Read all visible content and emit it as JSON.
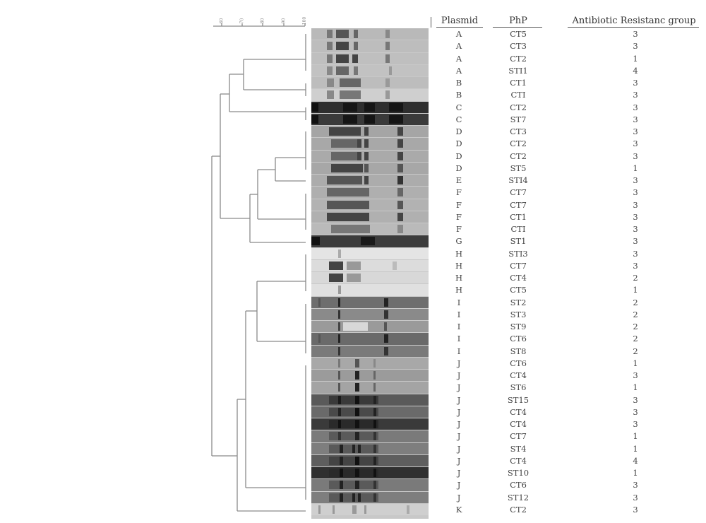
{
  "figure": {
    "scale": {
      "ticks": [
        "60",
        "70",
        "80",
        "90",
        "100"
      ]
    },
    "columns": {
      "plasmid": "Plasmid",
      "php": "PhP",
      "resistance": "Antibiotic Resistanc group"
    },
    "rows": [
      {
        "plasmid": "A",
        "php": "CT5",
        "group": "3"
      },
      {
        "plasmid": "A",
        "php": "CT3",
        "group": "3"
      },
      {
        "plasmid": "A",
        "php": "CT2",
        "group": "1"
      },
      {
        "plasmid": "A",
        "php": "STI1",
        "group": "4"
      },
      {
        "plasmid": "B",
        "php": "CT1",
        "group": "3"
      },
      {
        "plasmid": "B",
        "php": "CTI",
        "group": "3"
      },
      {
        "plasmid": "C",
        "php": "CT2",
        "group": "3"
      },
      {
        "plasmid": "C",
        "php": "ST7",
        "group": "3"
      },
      {
        "plasmid": "D",
        "php": "CT3",
        "group": "3"
      },
      {
        "plasmid": "D",
        "php": "CT2",
        "group": "3"
      },
      {
        "plasmid": "D",
        "php": "CT2",
        "group": "3"
      },
      {
        "plasmid": "D",
        "php": "ST5",
        "group": "1"
      },
      {
        "plasmid": "E",
        "php": "STI4",
        "group": "3"
      },
      {
        "plasmid": "F",
        "php": "CT7",
        "group": "3"
      },
      {
        "plasmid": "F",
        "php": "CT7",
        "group": "3"
      },
      {
        "plasmid": "F",
        "php": "CT1",
        "group": "3"
      },
      {
        "plasmid": "F",
        "php": "CTI",
        "group": "3"
      },
      {
        "plasmid": "G",
        "php": "ST1",
        "group": "3"
      },
      {
        "plasmid": "H",
        "php": "STI3",
        "group": "3"
      },
      {
        "plasmid": "H",
        "php": "CT7",
        "group": "3"
      },
      {
        "plasmid": "H",
        "php": "CT4",
        "group": "2"
      },
      {
        "plasmid": "H",
        "php": "CT5",
        "group": "1"
      },
      {
        "plasmid": "I",
        "php": "ST2",
        "group": "2"
      },
      {
        "plasmid": "I",
        "php": "ST3",
        "group": "2"
      },
      {
        "plasmid": "I",
        "php": "ST9",
        "group": "2"
      },
      {
        "plasmid": "I",
        "php": "CT6",
        "group": "2"
      },
      {
        "plasmid": "I",
        "php": "ST8",
        "group": "2"
      },
      {
        "plasmid": "J",
        "php": "CT6",
        "group": "1"
      },
      {
        "plasmid": "J",
        "php": "CT4",
        "group": "3"
      },
      {
        "plasmid": "J",
        "php": "ST6",
        "group": "1"
      },
      {
        "plasmid": "J",
        "php": "ST15",
        "group": "3"
      },
      {
        "plasmid": "J",
        "php": "CT4",
        "group": "3"
      },
      {
        "plasmid": "J",
        "php": "CT4",
        "group": "3"
      },
      {
        "plasmid": "J",
        "php": "CT7",
        "group": "1"
      },
      {
        "plasmid": "J",
        "php": "ST4",
        "group": "1"
      },
      {
        "plasmid": "J",
        "php": "CT4",
        "group": "4"
      },
      {
        "plasmid": "J",
        "php": "ST10",
        "group": "1"
      },
      {
        "plasmid": "J",
        "php": "CT6",
        "group": "3"
      },
      {
        "plasmid": "J",
        "php": "ST12",
        "group": "3"
      },
      {
        "plasmid": "K",
        "php": "CT2",
        "group": "3"
      }
    ],
    "gel_lanes": [
      {
        "bg": "#b9b9b9",
        "bands": [
          [
            22,
            8,
            "#777"
          ],
          [
            35,
            18,
            "#555"
          ],
          [
            60,
            6,
            "#666"
          ],
          [
            105,
            6,
            "#888"
          ]
        ]
      },
      {
        "bg": "#bdbdbd",
        "bands": [
          [
            22,
            8,
            "#777"
          ],
          [
            35,
            18,
            "#444"
          ],
          [
            60,
            6,
            "#666"
          ],
          [
            105,
            6,
            "#777"
          ]
        ]
      },
      {
        "bg": "#bfbfbf",
        "bands": [
          [
            22,
            8,
            "#777"
          ],
          [
            35,
            18,
            "#444"
          ],
          [
            58,
            8,
            "#444"
          ],
          [
            105,
            6,
            "#777"
          ]
        ]
      },
      {
        "bg": "#c2c2c2",
        "bands": [
          [
            22,
            8,
            "#888"
          ],
          [
            35,
            18,
            "#666"
          ],
          [
            60,
            6,
            "#777"
          ],
          [
            110,
            4,
            "#999"
          ]
        ]
      },
      {
        "bg": "#bdbdbd",
        "bands": [
          [
            22,
            10,
            "#888"
          ],
          [
            40,
            30,
            "#666"
          ],
          [
            105,
            6,
            "#999"
          ]
        ]
      },
      {
        "bg": "#cfcfcf",
        "bands": [
          [
            22,
            10,
            "#888"
          ],
          [
            40,
            30,
            "#777"
          ],
          [
            105,
            6,
            "#999"
          ]
        ]
      },
      {
        "bg": "#2e2e2e",
        "bands": [
          [
            0,
            10,
            "#111"
          ],
          [
            45,
            20,
            "#151515"
          ],
          [
            75,
            15,
            "#151515"
          ],
          [
            110,
            20,
            "#151515"
          ]
        ]
      },
      {
        "bg": "#3a3a3a",
        "bands": [
          [
            0,
            10,
            "#111"
          ],
          [
            45,
            20,
            "#151515"
          ],
          [
            75,
            15,
            "#151515"
          ],
          [
            110,
            20,
            "#151515"
          ]
        ]
      },
      {
        "bg": "#a5a5a5",
        "bands": [
          [
            25,
            45,
            "#444"
          ],
          [
            75,
            6,
            "#444"
          ],
          [
            122,
            8,
            "#444"
          ]
        ]
      },
      {
        "bg": "#a8a8a8",
        "bands": [
          [
            28,
            40,
            "#666"
          ],
          [
            65,
            6,
            "#444"
          ],
          [
            75,
            6,
            "#444"
          ],
          [
            122,
            8,
            "#444"
          ]
        ]
      },
      {
        "bg": "#aaaaaa",
        "bands": [
          [
            28,
            40,
            "#666"
          ],
          [
            65,
            6,
            "#444"
          ],
          [
            75,
            6,
            "#444"
          ],
          [
            122,
            8,
            "#444"
          ]
        ]
      },
      {
        "bg": "#a7a7a7",
        "bands": [
          [
            28,
            45,
            "#444"
          ],
          [
            75,
            6,
            "#555"
          ],
          [
            122,
            8,
            "#555"
          ]
        ]
      },
      {
        "bg": "#acacac",
        "bands": [
          [
            22,
            50,
            "#555"
          ],
          [
            75,
            6,
            "#444"
          ],
          [
            122,
            8,
            "#333"
          ]
        ]
      },
      {
        "bg": "#afafaf",
        "bands": [
          [
            22,
            60,
            "#666"
          ],
          [
            122,
            8,
            "#666"
          ]
        ]
      },
      {
        "bg": "#b2b2b2",
        "bands": [
          [
            22,
            60,
            "#555"
          ],
          [
            122,
            8,
            "#555"
          ]
        ]
      },
      {
        "bg": "#b0b0b0",
        "bands": [
          [
            22,
            60,
            "#444"
          ],
          [
            122,
            8,
            "#444"
          ]
        ]
      },
      {
        "bg": "#bababa",
        "bands": [
          [
            28,
            55,
            "#777"
          ],
          [
            122,
            8,
            "#888"
          ]
        ]
      },
      {
        "bg": "#3c3c3c",
        "bands": [
          [
            0,
            12,
            "#111"
          ],
          [
            70,
            20,
            "#1a1a1a"
          ]
        ]
      },
      {
        "bg": "#e4e4e4",
        "bands": [
          [
            38,
            4,
            "#aaa"
          ]
        ]
      },
      {
        "bg": "#dcdcdc",
        "bands": [
          [
            25,
            20,
            "#444"
          ],
          [
            50,
            20,
            "#999"
          ],
          [
            115,
            6,
            "#bbb"
          ]
        ]
      },
      {
        "bg": "#d8d8d8",
        "bands": [
          [
            25,
            20,
            "#444"
          ],
          [
            50,
            20,
            "#999"
          ]
        ]
      },
      {
        "bg": "#e0e0e0",
        "bands": [
          [
            38,
            4,
            "#999"
          ]
        ]
      },
      {
        "bg": "#6e6e6e",
        "bands": [
          [
            10,
            3,
            "#555"
          ],
          [
            38,
            3,
            "#222"
          ],
          [
            103,
            6,
            "#222"
          ]
        ]
      },
      {
        "bg": "#8a8a8a",
        "bands": [
          [
            38,
            3,
            "#333"
          ],
          [
            103,
            6,
            "#333"
          ]
        ]
      },
      {
        "bg": "#9a9a9a",
        "bands": [
          [
            38,
            3,
            "#444"
          ],
          [
            45,
            35,
            "#d8d8d8"
          ],
          [
            103,
            4,
            "#555"
          ]
        ]
      },
      {
        "bg": "#6a6a6a",
        "bands": [
          [
            10,
            3,
            "#555"
          ],
          [
            38,
            3,
            "#222"
          ],
          [
            103,
            6,
            "#222"
          ]
        ]
      },
      {
        "bg": "#7a7a7a",
        "bands": [
          [
            38,
            3,
            "#333"
          ],
          [
            103,
            6,
            "#333"
          ]
        ]
      },
      {
        "bg": "#a8a8a8",
        "bands": [
          [
            38,
            3,
            "#777"
          ],
          [
            62,
            6,
            "#555"
          ],
          [
            88,
            3,
            "#888"
          ]
        ]
      },
      {
        "bg": "#9b9b9b",
        "bands": [
          [
            38,
            3,
            "#555"
          ],
          [
            62,
            6,
            "#222"
          ],
          [
            88,
            3,
            "#666"
          ]
        ]
      },
      {
        "bg": "#a4a4a4",
        "bands": [
          [
            38,
            3,
            "#555"
          ],
          [
            62,
            6,
            "#222"
          ],
          [
            88,
            3,
            "#666"
          ]
        ]
      },
      {
        "bg": "#5a5a5a",
        "bands": [
          [
            25,
            70,
            "#3a3a3a"
          ],
          [
            38,
            4,
            "#1a1a1a"
          ],
          [
            62,
            6,
            "#111"
          ],
          [
            88,
            4,
            "#222"
          ]
        ]
      },
      {
        "bg": "#6a6a6a",
        "bands": [
          [
            25,
            70,
            "#4a4a4a"
          ],
          [
            38,
            4,
            "#222"
          ],
          [
            62,
            6,
            "#111"
          ],
          [
            88,
            4,
            "#222"
          ]
        ]
      },
      {
        "bg": "#3a3a3a",
        "bands": [
          [
            25,
            70,
            "#2a2a2a"
          ],
          [
            38,
            4,
            "#111"
          ],
          [
            62,
            6,
            "#111"
          ],
          [
            88,
            4,
            "#111"
          ]
        ]
      },
      {
        "bg": "#7a7a7a",
        "bands": [
          [
            25,
            70,
            "#5a5a5a"
          ],
          [
            38,
            4,
            "#333"
          ],
          [
            62,
            6,
            "#222"
          ],
          [
            88,
            4,
            "#333"
          ]
        ]
      },
      {
        "bg": "#7e7e7e",
        "bands": [
          [
            25,
            70,
            "#5a5a5a"
          ],
          [
            40,
            5,
            "#222"
          ],
          [
            58,
            4,
            "#222"
          ],
          [
            66,
            4,
            "#222"
          ],
          [
            88,
            4,
            "#333"
          ]
        ]
      },
      {
        "bg": "#5e5e5e",
        "bands": [
          [
            25,
            70,
            "#444"
          ],
          [
            40,
            5,
            "#222"
          ],
          [
            62,
            6,
            "#111"
          ],
          [
            88,
            4,
            "#222"
          ]
        ]
      },
      {
        "bg": "#303030",
        "bands": [
          [
            25,
            70,
            "#2a2a2a"
          ],
          [
            40,
            5,
            "#111"
          ],
          [
            62,
            6,
            "#111"
          ],
          [
            88,
            4,
            "#111"
          ]
        ]
      },
      {
        "bg": "#7a7a7a",
        "bands": [
          [
            25,
            70,
            "#5a5a5a"
          ],
          [
            40,
            5,
            "#222"
          ],
          [
            62,
            6,
            "#222"
          ],
          [
            88,
            4,
            "#333"
          ]
        ]
      },
      {
        "bg": "#7e7e7e",
        "bands": [
          [
            25,
            70,
            "#5a5a5a"
          ],
          [
            40,
            5,
            "#222"
          ],
          [
            58,
            4,
            "#222"
          ],
          [
            66,
            4,
            "#222"
          ],
          [
            88,
            4,
            "#333"
          ]
        ]
      },
      {
        "bg": "#cfcfcf",
        "bands": [
          [
            10,
            3,
            "#999"
          ],
          [
            30,
            3,
            "#999"
          ],
          [
            58,
            6,
            "#999"
          ],
          [
            75,
            3,
            "#999"
          ],
          [
            135,
            4,
            "#aaa"
          ]
        ]
      }
    ]
  }
}
